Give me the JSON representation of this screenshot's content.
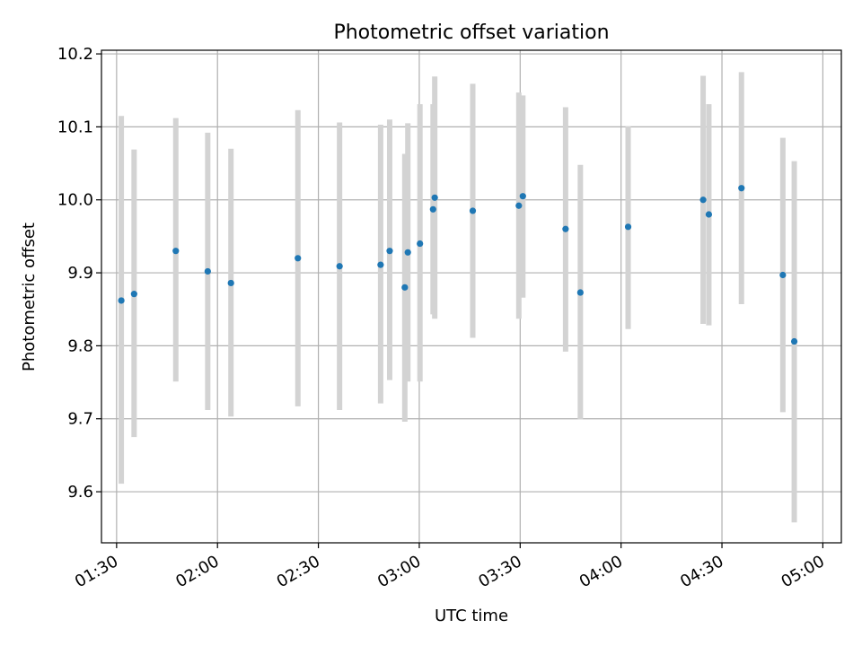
{
  "chart_data": {
    "type": "scatter",
    "title": "Photometric offset variation",
    "xlabel": "UTC time",
    "ylabel": "Photometric offset",
    "grid": true,
    "xlim_minutes": [
      85.5,
      305.5
    ],
    "ylim": [
      9.53,
      10.205
    ],
    "x_ticks": [
      {
        "minutes": 90,
        "label": "01:30"
      },
      {
        "minutes": 120,
        "label": "02:00"
      },
      {
        "minutes": 150,
        "label": "02:30"
      },
      {
        "minutes": 180,
        "label": "03:00"
      },
      {
        "minutes": 210,
        "label": "03:30"
      },
      {
        "minutes": 240,
        "label": "04:00"
      },
      {
        "minutes": 270,
        "label": "04:30"
      },
      {
        "minutes": 300,
        "label": "05:00"
      }
    ],
    "y_ticks": [
      {
        "value": 9.6,
        "label": "9.6"
      },
      {
        "value": 9.7,
        "label": "9.7"
      },
      {
        "value": 9.8,
        "label": "9.8"
      },
      {
        "value": 9.9,
        "label": "9.9"
      },
      {
        "value": 10.0,
        "label": "10.0"
      },
      {
        "value": 10.1,
        "label": "10.1"
      },
      {
        "value": 10.2,
        "label": "10.2"
      }
    ],
    "marker_color": "#1f77b4",
    "errorbar_color": "#d3d3d3",
    "points": [
      {
        "x": 91.4,
        "y": 9.862,
        "ylow": 9.611,
        "yhigh": 10.115
      },
      {
        "x": 95.2,
        "y": 9.871,
        "ylow": 9.675,
        "yhigh": 10.069
      },
      {
        "x": 107.6,
        "y": 9.93,
        "ylow": 9.751,
        "yhigh": 10.112
      },
      {
        "x": 117.1,
        "y": 9.902,
        "ylow": 9.712,
        "yhigh": 10.092
      },
      {
        "x": 124.0,
        "y": 9.886,
        "ylow": 9.703,
        "yhigh": 10.07
      },
      {
        "x": 143.9,
        "y": 9.92,
        "ylow": 9.717,
        "yhigh": 10.123
      },
      {
        "x": 156.3,
        "y": 9.909,
        "ylow": 9.712,
        "yhigh": 10.106
      },
      {
        "x": 168.5,
        "y": 9.911,
        "ylow": 9.721,
        "yhigh": 10.103
      },
      {
        "x": 171.2,
        "y": 9.93,
        "ylow": 9.753,
        "yhigh": 10.11
      },
      {
        "x": 175.7,
        "y": 9.88,
        "ylow": 9.696,
        "yhigh": 10.063
      },
      {
        "x": 176.6,
        "y": 9.928,
        "ylow": 9.751,
        "yhigh": 10.105
      },
      {
        "x": 180.2,
        "y": 9.94,
        "ylow": 9.751,
        "yhigh": 10.131
      },
      {
        "x": 184.1,
        "y": 9.987,
        "ylow": 9.843,
        "yhigh": 10.131
      },
      {
        "x": 184.6,
        "y": 10.003,
        "ylow": 9.837,
        "yhigh": 10.169
      },
      {
        "x": 195.9,
        "y": 9.985,
        "ylow": 9.811,
        "yhigh": 10.159
      },
      {
        "x": 209.6,
        "y": 9.992,
        "ylow": 9.837,
        "yhigh": 10.147
      },
      {
        "x": 210.8,
        "y": 10.005,
        "ylow": 9.866,
        "yhigh": 10.143
      },
      {
        "x": 223.5,
        "y": 9.96,
        "ylow": 9.792,
        "yhigh": 10.127
      },
      {
        "x": 227.9,
        "y": 9.873,
        "ylow": 9.699,
        "yhigh": 10.048
      },
      {
        "x": 242.1,
        "y": 9.963,
        "ylow": 9.823,
        "yhigh": 10.101
      },
      {
        "x": 264.4,
        "y": 10.0,
        "ylow": 9.83,
        "yhigh": 10.17
      },
      {
        "x": 266.1,
        "y": 9.98,
        "ylow": 9.828,
        "yhigh": 10.131
      },
      {
        "x": 275.8,
        "y": 10.016,
        "ylow": 9.857,
        "yhigh": 10.175
      },
      {
        "x": 288.1,
        "y": 9.897,
        "ylow": 9.709,
        "yhigh": 10.085
      },
      {
        "x": 291.5,
        "y": 9.806,
        "ylow": 9.558,
        "yhigh": 10.053
      }
    ]
  }
}
